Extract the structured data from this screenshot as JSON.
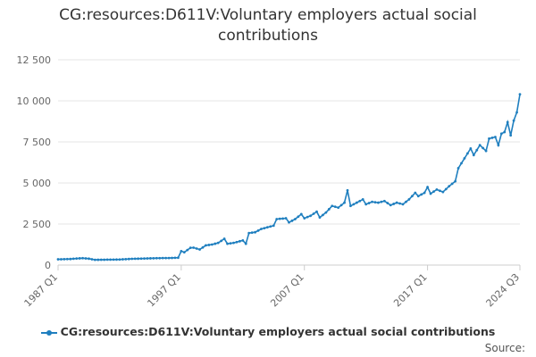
{
  "title_line1": "CG:resources:D611V:Voluntary employers actual social",
  "title_line2": "contributions",
  "source_label": "Source:",
  "colors": {
    "series": "#1f7fbf",
    "grid": "#e6e6e6",
    "axis": "#cccccc"
  },
  "chart_data": {
    "type": "line",
    "title": "CG:resources:D611V:Voluntary employers actual social contributions",
    "xlabel": "",
    "ylabel": "",
    "ylim": [
      0,
      12500
    ],
    "yticks": [
      0,
      2500,
      5000,
      7500,
      10000,
      12500
    ],
    "ytick_labels": [
      "0",
      "2 500",
      "5 000",
      "7 500",
      "10 000",
      "12 500"
    ],
    "xticks": [
      "1987 Q1",
      "1997 Q1",
      "2007 Q1",
      "2017 Q1",
      "2024 Q3"
    ],
    "grid": true,
    "legend": "bottom",
    "series": [
      {
        "name": "CG:resources:D611V:Voluntary employers actual social contributions",
        "color": "#1f7fbf",
        "points": [
          [
            "1987 Q1",
            350
          ],
          [
            "1988 Q1",
            370
          ],
          [
            "1988 Q3",
            400
          ],
          [
            "1989 Q1",
            420
          ],
          [
            "1989 Q3",
            390
          ],
          [
            "1990 Q1",
            320
          ],
          [
            "1991 Q1",
            330
          ],
          [
            "1992 Q1",
            340
          ],
          [
            "1993 Q1",
            380
          ],
          [
            "1994 Q1",
            400
          ],
          [
            "1995 Q1",
            420
          ],
          [
            "1996 Q1",
            430
          ],
          [
            "1996 Q4",
            450
          ],
          [
            "1997 Q1",
            850
          ],
          [
            "1997 Q2",
            780
          ],
          [
            "1997 Q4",
            1050
          ],
          [
            "1998 Q1",
            1060
          ],
          [
            "1998 Q3",
            950
          ],
          [
            "1999 Q1",
            1200
          ],
          [
            "1999 Q3",
            1250
          ],
          [
            "2000 Q1",
            1350
          ],
          [
            "2000 Q3",
            1600
          ],
          [
            "2000 Q4",
            1300
          ],
          [
            "2001 Q2",
            1350
          ],
          [
            "2002 Q1",
            1500
          ],
          [
            "2002 Q2",
            1300
          ],
          [
            "2002 Q3",
            1950
          ],
          [
            "2003 Q1",
            2000
          ],
          [
            "2003 Q3",
            2200
          ],
          [
            "2004 Q1",
            2300
          ],
          [
            "2004 Q3",
            2400
          ],
          [
            "2004 Q4",
            2800
          ],
          [
            "2005 Q3",
            2850
          ],
          [
            "2005 Q4",
            2600
          ],
          [
            "2006 Q2",
            2800
          ],
          [
            "2006 Q4",
            3100
          ],
          [
            "2007 Q1",
            2850
          ],
          [
            "2007 Q3",
            3000
          ],
          [
            "2008 Q1",
            3250
          ],
          [
            "2008 Q2",
            2900
          ],
          [
            "2008 Q4",
            3200
          ],
          [
            "2009 Q2",
            3600
          ],
          [
            "2009 Q4",
            3500
          ],
          [
            "2010 Q2",
            3800
          ],
          [
            "2010 Q3",
            4550
          ],
          [
            "2010 Q4",
            3600
          ],
          [
            "2011 Q2",
            3800
          ],
          [
            "2011 Q4",
            4000
          ],
          [
            "2012 Q1",
            3700
          ],
          [
            "2012 Q3",
            3850
          ],
          [
            "2013 Q1",
            3800
          ],
          [
            "2013 Q3",
            3900
          ],
          [
            "2014 Q1",
            3650
          ],
          [
            "2014 Q3",
            3800
          ],
          [
            "2015 Q1",
            3700
          ],
          [
            "2015 Q3",
            4000
          ],
          [
            "2016 Q1",
            4400
          ],
          [
            "2016 Q2",
            4200
          ],
          [
            "2016 Q4",
            4400
          ],
          [
            "2017 Q1",
            4750
          ],
          [
            "2017 Q2",
            4350
          ],
          [
            "2017 Q4",
            4600
          ],
          [
            "2018 Q2",
            4450
          ],
          [
            "2018 Q4",
            4800
          ],
          [
            "2019 Q2",
            5100
          ],
          [
            "2019 Q3",
            5900
          ],
          [
            "2020 Q1",
            6500
          ],
          [
            "2020 Q3",
            7100
          ],
          [
            "2020 Q4",
            6700
          ],
          [
            "2021 Q2",
            7300
          ],
          [
            "2021 Q4",
            6950
          ],
          [
            "2022 Q1",
            7700
          ],
          [
            "2022 Q3",
            7800
          ],
          [
            "2022 Q4",
            7300
          ],
          [
            "2023 Q1",
            8000
          ],
          [
            "2023 Q2",
            8100
          ],
          [
            "2023 Q3",
            8700
          ],
          [
            "2023 Q4",
            7900
          ],
          [
            "2024 Q1",
            8800
          ],
          [
            "2024 Q2",
            9300
          ],
          [
            "2024 Q3",
            10400
          ]
        ]
      }
    ]
  }
}
